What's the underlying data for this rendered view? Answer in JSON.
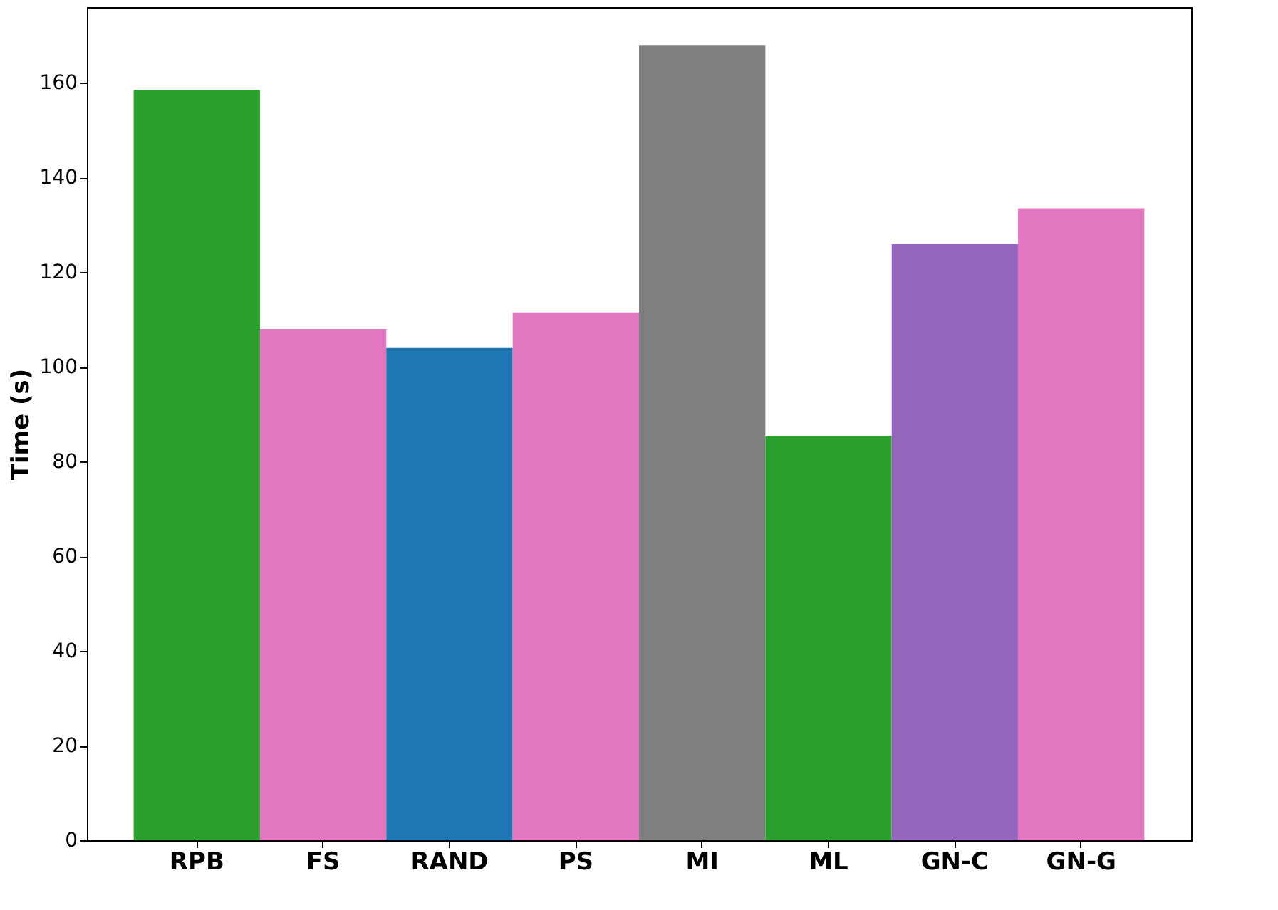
{
  "chart_data": {
    "type": "bar",
    "ylabel": "Time (s)",
    "categories": [
      "RPB",
      "FS",
      "RAND",
      "PS",
      "MI",
      "ML",
      "GN-C",
      "GN-G"
    ],
    "values": [
      158.5,
      108,
      104,
      111.5,
      168,
      85.4,
      126,
      133.5
    ],
    "colors": [
      "#2ca02c",
      "#e377c2",
      "#1f77b4",
      "#e377c2",
      "#7f7f7f",
      "#2ca02c",
      "#9467bd",
      "#e377c2"
    ],
    "ylim": [
      0,
      176
    ],
    "yticks": [
      0,
      20,
      40,
      60,
      80,
      100,
      120,
      140,
      160
    ],
    "grid": false
  }
}
